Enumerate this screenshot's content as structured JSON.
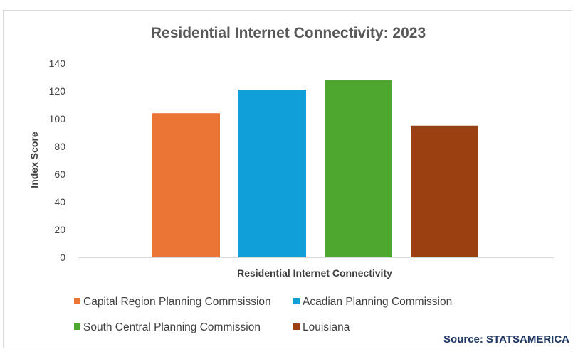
{
  "chart_data": {
    "type": "bar",
    "title": "Residential Internet Connectivity: 2023",
    "xlabel": "Residential Internet Connectivity",
    "ylabel": "Index Score",
    "ylim": [
      0,
      140
    ],
    "yticks": [
      0,
      20,
      40,
      60,
      80,
      100,
      120,
      140
    ],
    "grid": false,
    "legend_position": "bottom",
    "categories": [
      "Residential Internet Connectivity"
    ],
    "series": [
      {
        "name": "Capital Region Planning Commsission",
        "values": [
          104
        ],
        "color": "#ea7535"
      },
      {
        "name": "Acadian Planning Commission",
        "values": [
          121
        ],
        "color": "#119fd9"
      },
      {
        "name": "South Central Planning Commission",
        "values": [
          128
        ],
        "color": "#4ea72e"
      },
      {
        "name": "Louisiana",
        "values": [
          95
        ],
        "color": "#9a4011"
      }
    ]
  },
  "source": "Source: STATSAMERICA"
}
